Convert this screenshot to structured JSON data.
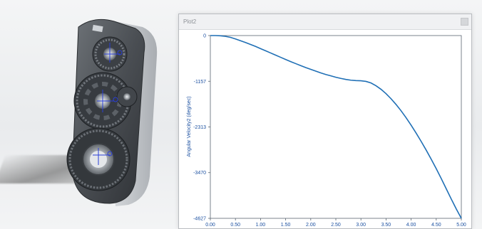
{
  "viewport": {
    "model_name": "gear-housing-assembly"
  },
  "plot_window": {
    "title": "Plot2"
  },
  "chart_data": {
    "type": "line",
    "title": "",
    "xlabel": "",
    "ylabel": "Angular Velocity2 (deg/sec)",
    "xlim": [
      0,
      5.0
    ],
    "ylim": [
      -4627,
      0
    ],
    "x_ticks": [
      "0.00",
      "0.50",
      "1.00",
      "1.50",
      "2.00",
      "2.50",
      "3.00",
      "3.50",
      "4.00",
      "4.50",
      "5.00"
    ],
    "y_ticks": [
      "0",
      "-1157",
      "-2313",
      "-3470",
      "-4627"
    ],
    "grid": false,
    "line_color": "#1f6fb5",
    "series": [
      {
        "x": [
          0.0,
          0.1,
          0.2,
          0.3,
          0.4,
          0.5,
          0.6,
          0.7,
          0.8,
          0.9,
          1.0,
          1.1,
          1.2,
          1.3,
          1.4,
          1.5,
          1.6,
          1.7,
          1.8,
          1.9,
          2.0,
          2.1,
          2.2,
          2.3,
          2.4,
          2.5,
          2.6,
          2.7,
          2.8,
          2.9,
          3.0,
          3.1,
          3.2,
          3.3,
          3.4,
          3.5,
          3.6,
          3.7,
          3.8,
          3.9,
          4.0,
          4.1,
          4.2,
          4.3,
          4.4,
          4.5,
          4.6,
          4.7,
          4.8,
          4.9,
          5.0
        ],
        "values": [
          0,
          0,
          -5,
          -20,
          -45,
          -85,
          -130,
          -175,
          -225,
          -275,
          -330,
          -385,
          -440,
          -495,
          -550,
          -605,
          -660,
          -710,
          -760,
          -810,
          -855,
          -900,
          -945,
          -985,
          -1020,
          -1055,
          -1085,
          -1110,
          -1130,
          -1140,
          -1145,
          -1160,
          -1200,
          -1270,
          -1360,
          -1470,
          -1600,
          -1745,
          -1905,
          -2080,
          -2270,
          -2470,
          -2680,
          -2900,
          -3130,
          -3370,
          -3620,
          -3880,
          -4140,
          -4390,
          -4627
        ]
      }
    ]
  }
}
